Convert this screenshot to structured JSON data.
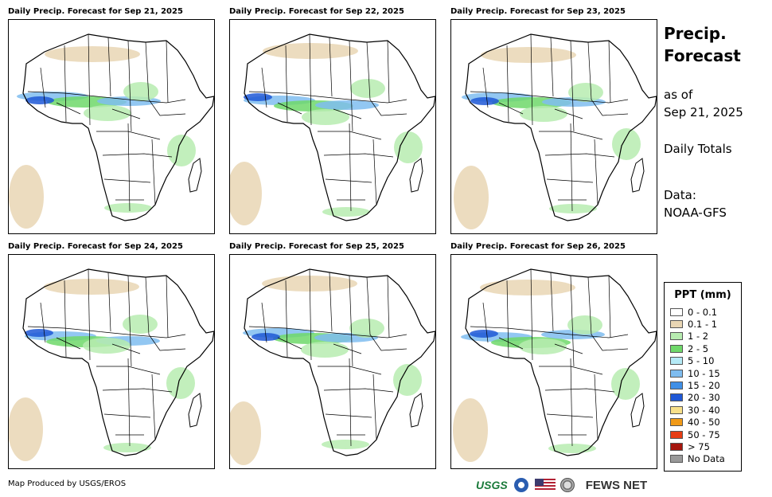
{
  "panels": [
    {
      "title": "Daily Precip. Forecast for Sep 21, 2025",
      "date": "Sep 21, 2025"
    },
    {
      "title": "Daily Precip. Forecast for Sep 22, 2025",
      "date": "Sep 22, 2025"
    },
    {
      "title": "Daily Precip. Forecast for Sep 23, 2025",
      "date": "Sep 23, 2025"
    },
    {
      "title": "Daily Precip. Forecast for Sep 24, 2025",
      "date": "Sep 24, 2025"
    },
    {
      "title": "Daily Precip. Forecast for Sep 25, 2025",
      "date": "Sep 25, 2025"
    },
    {
      "title": "Daily Precip. Forecast for Sep 26, 2025",
      "date": "Sep 26, 2025"
    }
  ],
  "sidebar": {
    "heading_line1": "Precip.",
    "heading_line2": "Forecast",
    "asof_label": "as of",
    "asof_date": "Sep 21, 2025",
    "totals": "Daily Totals",
    "data_label": "Data:",
    "data_source": "NOAA-GFS"
  },
  "legend": {
    "title": "PPT (mm)",
    "items": [
      {
        "label": "0 - 0.1",
        "color": "#ffffff"
      },
      {
        "label": "0.1 - 1",
        "color": "#e9d6b4"
      },
      {
        "label": "1 - 2",
        "color": "#b7ecb0"
      },
      {
        "label": "2 - 5",
        "color": "#6fd86a"
      },
      {
        "label": "5 - 10",
        "color": "#b5eaf6"
      },
      {
        "label": "10 - 15",
        "color": "#7fbdf0"
      },
      {
        "label": "15 - 20",
        "color": "#3f8fe6"
      },
      {
        "label": "20 - 30",
        "color": "#1f58d6"
      },
      {
        "label": "30 - 40",
        "color": "#f8e08a"
      },
      {
        "label": "40 - 50",
        "color": "#f19a18"
      },
      {
        "label": "50 - 75",
        "color": "#e63c14"
      },
      {
        "label": "> 75",
        "color": "#a5160e"
      },
      {
        "label": "No Data",
        "color": "#999999"
      }
    ]
  },
  "footer": {
    "credit": "Map Produced by USGS/EROS",
    "usgs_logo": "USGS",
    "fews_logo": "FEWS NET"
  }
}
